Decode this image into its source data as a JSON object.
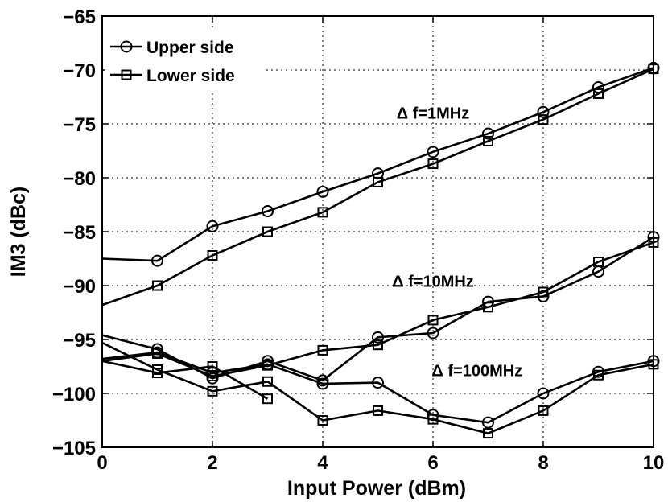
{
  "chart_data": {
    "type": "line",
    "xlabel": "Input Power (dBm)",
    "ylabel": "IM3 (dBc)",
    "xlim": [
      0,
      10
    ],
    "ylim": [
      -105,
      -65
    ],
    "xticks": [
      0,
      2,
      4,
      6,
      8,
      10
    ],
    "yticks": [
      -105,
      -100,
      -95,
      -90,
      -85,
      -80,
      -75,
      -70,
      -65
    ],
    "grid": true,
    "legend": {
      "placement": "top-left",
      "entries": [
        {
          "label": "Upper side",
          "marker": "circle"
        },
        {
          "label": "Lower side",
          "marker": "square"
        }
      ]
    },
    "annotations": [
      {
        "text": "Δ f=1MHz",
        "x": 6.0,
        "y": -74.5
      },
      {
        "text": "Δ f=10MHz",
        "x": 6.0,
        "y": -90.1
      },
      {
        "text": "Δ f=100MHz",
        "x": 6.8,
        "y": -98.4
      }
    ],
    "series": [
      {
        "group": "Δ f=1MHz",
        "marker": "circle",
        "x": [
          0,
          1,
          2,
          3,
          4,
          5,
          6,
          7,
          8,
          9,
          10
        ],
        "y": [
          -87.5,
          -87.7,
          -84.5,
          -83.1,
          -81.3,
          -79.6,
          -77.6,
          -75.9,
          -73.9,
          -71.6,
          -69.8
        ]
      },
      {
        "group": "Δ f=1MHz",
        "marker": "square",
        "x": [
          0,
          1,
          2,
          3,
          4,
          5,
          6,
          7,
          8,
          9,
          10
        ],
        "y": [
          -91.8,
          -90.0,
          -87.2,
          -85.0,
          -83.2,
          -80.4,
          -78.7,
          -76.6,
          -74.6,
          -72.2,
          -69.9
        ]
      },
      {
        "group": "Δ f=10MHz",
        "marker": "circle",
        "x": [
          0,
          1,
          2,
          3,
          4,
          5,
          6,
          7,
          8,
          9,
          10
        ],
        "y": [
          -94.6,
          -95.9,
          -98.6,
          -97.0,
          -98.8,
          -94.8,
          -94.4,
          -91.5,
          -91.0,
          -88.7,
          -85.5
        ]
      },
      {
        "group": "Δ f=10MHz",
        "marker": "square",
        "x": [
          0,
          1,
          2,
          3,
          4,
          5,
          6,
          7,
          8,
          9,
          10
        ],
        "y": [
          -97.0,
          -96.3,
          -98.4,
          -97.4,
          -96.0,
          -95.5,
          -93.2,
          -92.0,
          -90.6,
          -87.8,
          -86.0
        ]
      },
      {
        "group": "Δ f=100MHz",
        "marker": "circle",
        "x": [
          0,
          1,
          2,
          3,
          4,
          5,
          6,
          7,
          8,
          9,
          10
        ],
        "y": [
          -96.8,
          -96.2,
          -98.1,
          -97.3,
          -99.1,
          -99.0,
          -102.0,
          -102.7,
          -100.0,
          -98.0,
          -97.0
        ]
      },
      {
        "group": "Δ f=100MHz",
        "marker": "square",
        "x": [
          0,
          1,
          2,
          3,
          4,
          5,
          6,
          7,
          8,
          9,
          10
        ],
        "y": [
          -95.3,
          -97.8,
          -99.8,
          -98.9,
          -102.5,
          -101.6,
          -102.4,
          -103.7,
          -101.6,
          -98.3,
          -97.3
        ]
      },
      {
        "group": "Δ f=100MHz",
        "marker": "square",
        "x": [
          0,
          1,
          2,
          3
        ],
        "y": [
          -97.0,
          -98.1,
          -97.5,
          -100.5
        ]
      }
    ]
  }
}
